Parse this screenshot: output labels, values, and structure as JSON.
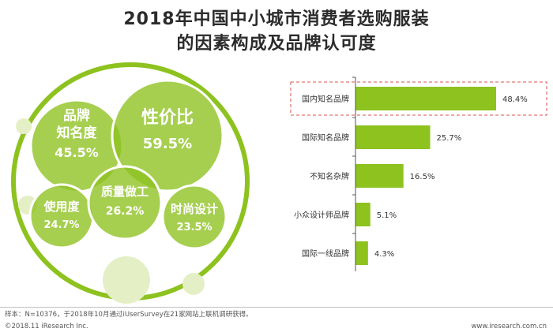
{
  "title_line1": "2018年中国中小城市消费者选购服装",
  "title_line2": "的因素构成及品牌认可度",
  "colors": {
    "accent": "#8dc21f",
    "bubble_fill": "#e4efc6",
    "bubble_stroke": "#ffffff",
    "highlight_border": "#d9534f",
    "axis": "#555555"
  },
  "bubbles": [
    {
      "name": "品牌知名度",
      "label_lines": [
        "品牌",
        "知名度"
      ],
      "value": "45.5%"
    },
    {
      "name": "性价比",
      "label_lines": [
        "性价比"
      ],
      "value": "59.5%"
    },
    {
      "name": "使用度",
      "label_lines": [
        "使用度"
      ],
      "value": "24.7%"
    },
    {
      "name": "质量做工",
      "label_lines": [
        "质量做工"
      ],
      "value": "26.2%"
    },
    {
      "name": "时尚设计",
      "label_lines": [
        "时尚设计"
      ],
      "value": "23.5%"
    }
  ],
  "chart_data": {
    "type": "bar",
    "orientation": "horizontal",
    "categories": [
      "国内知名品牌",
      "国际知名品牌",
      "不知名杂牌",
      "小众设计师品牌",
      "国际一线品牌"
    ],
    "values": [
      48.4,
      25.7,
      16.5,
      5.1,
      4.3
    ],
    "value_labels": [
      "48.4%",
      "25.7%",
      "16.5%",
      "5.1%",
      "4.3%"
    ],
    "highlighted_category": "国内知名品牌",
    "bar_color": "#8dc21f"
  },
  "footer": {
    "note": "样本：N=10376，于2018年10月通过iUserSurvey在21家网站上联机调研获得。",
    "copyright": "©2018.11 iResearch Inc.",
    "website": "www.iresearch.com.cn"
  }
}
